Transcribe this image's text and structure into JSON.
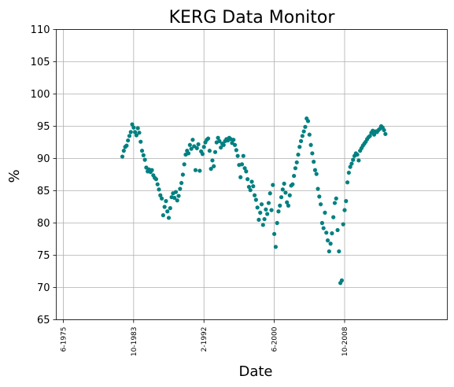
{
  "chart_data": {
    "type": "scatter",
    "title": "KERG Data Monitor",
    "xlabel": "Date",
    "ylabel": "%",
    "ylim": [
      65,
      110
    ],
    "yticks": [
      65,
      70,
      75,
      80,
      85,
      90,
      95,
      100,
      105,
      110
    ],
    "xlim": [
      "1974-08",
      "2020-12"
    ],
    "xticks": [
      {
        "label": "6-1975",
        "date": "1975-06"
      },
      {
        "label": "10-1983",
        "date": "1983-10"
      },
      {
        "label": "2-1992",
        "date": "1992-02"
      },
      {
        "label": "6-2000",
        "date": "2000-06"
      },
      {
        "label": "10-2008",
        "date": "2008-10"
      }
    ],
    "grid": true,
    "marker_color": "#008080",
    "series": [
      {
        "points": [
          [
            "1982-06",
            90.3
          ],
          [
            "1982-08",
            91.2
          ],
          [
            "1982-10",
            91.8
          ],
          [
            "1982-12",
            92.0
          ],
          [
            "1983-02",
            92.8
          ],
          [
            "1983-04",
            93.5
          ],
          [
            "1983-06",
            94.1
          ],
          [
            "1983-08",
            95.3
          ],
          [
            "1983-10",
            94.8
          ],
          [
            "1983-12",
            94.1
          ],
          [
            "1984-02",
            93.6
          ],
          [
            "1984-04",
            94.7
          ],
          [
            "1984-06",
            94.0
          ],
          [
            "1984-08",
            92.6
          ],
          [
            "1984-10",
            91.2
          ],
          [
            "1984-12",
            90.5
          ],
          [
            "1985-02",
            89.8
          ],
          [
            "1985-04",
            88.6
          ],
          [
            "1985-06",
            88.0
          ],
          [
            "1985-08",
            88.3
          ],
          [
            "1985-10",
            87.9
          ],
          [
            "1985-12",
            88.2
          ],
          [
            "1986-02",
            87.4
          ],
          [
            "1986-04",
            87.0
          ],
          [
            "1986-06",
            86.8
          ],
          [
            "1986-08",
            86.0
          ],
          [
            "1986-10",
            85.2
          ],
          [
            "1986-12",
            84.3
          ],
          [
            "1987-02",
            83.8
          ],
          [
            "1987-04",
            81.2
          ],
          [
            "1987-06",
            82.5
          ],
          [
            "1987-08",
            83.4
          ],
          [
            "1987-10",
            81.8
          ],
          [
            "1987-12",
            80.8
          ],
          [
            "1988-02",
            82.3
          ],
          [
            "1988-04",
            84.0
          ],
          [
            "1988-06",
            84.6
          ],
          [
            "1988-08",
            83.9
          ],
          [
            "1988-10",
            84.8
          ],
          [
            "1988-12",
            83.5
          ],
          [
            "1989-02",
            84.2
          ],
          [
            "1989-04",
            85.3
          ],
          [
            "1989-06",
            86.2
          ],
          [
            "1989-08",
            87.5
          ],
          [
            "1989-10",
            89.1
          ],
          [
            "1989-12",
            90.6
          ],
          [
            "1990-02",
            91.2
          ],
          [
            "1990-04",
            90.8
          ],
          [
            "1990-06",
            92.1
          ],
          [
            "1990-08",
            91.5
          ],
          [
            "1990-10",
            92.9
          ],
          [
            "1990-12",
            91.9
          ],
          [
            "1991-02",
            88.2
          ],
          [
            "1991-04",
            91.6
          ],
          [
            "1991-06",
            92.2
          ],
          [
            "1991-08",
            88.1
          ],
          [
            "1991-10",
            91.1
          ],
          [
            "1991-12",
            90.7
          ],
          [
            "1992-02",
            91.8
          ],
          [
            "1992-04",
            92.5
          ],
          [
            "1992-06",
            92.9
          ],
          [
            "1992-08",
            93.1
          ],
          [
            "1992-10",
            91.2
          ],
          [
            "1992-12",
            88.4
          ],
          [
            "1993-02",
            89.7
          ],
          [
            "1993-04",
            88.8
          ],
          [
            "1993-06",
            91.0
          ],
          [
            "1993-08",
            92.5
          ],
          [
            "1993-10",
            93.2
          ],
          [
            "1993-12",
            92.7
          ],
          [
            "1994-02",
            91.7
          ],
          [
            "1994-04",
            92.3
          ],
          [
            "1994-06",
            92.1
          ],
          [
            "1994-08",
            92.7
          ],
          [
            "1994-10",
            93.0
          ],
          [
            "1994-12",
            92.8
          ],
          [
            "1995-02",
            93.2
          ],
          [
            "1995-04",
            93.0
          ],
          [
            "1995-06",
            92.4
          ],
          [
            "1995-08",
            92.9
          ],
          [
            "1995-10",
            92.1
          ],
          [
            "1995-12",
            91.3
          ],
          [
            "1996-02",
            90.4
          ],
          [
            "1996-04",
            89.0
          ],
          [
            "1996-06",
            87.1
          ],
          [
            "1996-08",
            89.1
          ],
          [
            "1996-10",
            90.4
          ],
          [
            "1996-12",
            88.5
          ],
          [
            "1997-02",
            88.0
          ],
          [
            "1997-04",
            86.8
          ],
          [
            "1997-06",
            85.6
          ],
          [
            "1997-08",
            85.1
          ],
          [
            "1997-10",
            86.4
          ],
          [
            "1997-12",
            85.7
          ],
          [
            "1998-02",
            84.3
          ],
          [
            "1998-04",
            83.6
          ],
          [
            "1998-06",
            82.4
          ],
          [
            "1998-08",
            80.5
          ],
          [
            "1998-10",
            81.6
          ],
          [
            "1998-12",
            82.9
          ],
          [
            "1999-02",
            79.7
          ],
          [
            "1999-04",
            80.6
          ],
          [
            "1999-06",
            82.1
          ],
          [
            "1999-08",
            81.4
          ],
          [
            "1999-10",
            83.1
          ],
          [
            "1999-12",
            84.6
          ],
          [
            "2000-02",
            82.0
          ],
          [
            "2000-04",
            85.9
          ],
          [
            "2000-06",
            78.3
          ],
          [
            "2000-08",
            76.3
          ],
          [
            "2000-10",
            80.0
          ],
          [
            "2000-12",
            81.8
          ],
          [
            "2001-02",
            82.7
          ],
          [
            "2001-04",
            84.0
          ],
          [
            "2001-06",
            85.2
          ],
          [
            "2001-08",
            86.1
          ],
          [
            "2001-10",
            84.7
          ],
          [
            "2001-12",
            83.2
          ],
          [
            "2002-02",
            82.7
          ],
          [
            "2002-04",
            84.3
          ],
          [
            "2002-06",
            85.8
          ],
          [
            "2002-08",
            86.0
          ],
          [
            "2002-10",
            87.3
          ],
          [
            "2002-12",
            88.5
          ],
          [
            "2003-02",
            89.4
          ],
          [
            "2003-04",
            90.6
          ],
          [
            "2003-06",
            91.8
          ],
          [
            "2003-08",
            92.7
          ],
          [
            "2003-10",
            93.5
          ],
          [
            "2003-12",
            94.2
          ],
          [
            "2004-02",
            94.9
          ],
          [
            "2004-04",
            96.2
          ],
          [
            "2004-06",
            95.8
          ],
          [
            "2004-08",
            93.7
          ],
          [
            "2004-10",
            92.1
          ],
          [
            "2004-12",
            90.8
          ],
          [
            "2005-02",
            89.5
          ],
          [
            "2005-04",
            88.2
          ],
          [
            "2005-06",
            87.6
          ],
          [
            "2005-08",
            85.3
          ],
          [
            "2005-10",
            84.1
          ],
          [
            "2005-12",
            82.9
          ],
          [
            "2006-02",
            80.0
          ],
          [
            "2006-04",
            79.2
          ],
          [
            "2006-06",
            81.6
          ],
          [
            "2006-08",
            78.5
          ],
          [
            "2006-10",
            77.3
          ],
          [
            "2006-12",
            75.6
          ],
          [
            "2007-02",
            76.8
          ],
          [
            "2007-04",
            78.4
          ],
          [
            "2007-06",
            80.9
          ],
          [
            "2007-08",
            83.1
          ],
          [
            "2007-10",
            83.8
          ],
          [
            "2007-12",
            78.9
          ],
          [
            "2008-02",
            75.6
          ],
          [
            "2008-04",
            70.7
          ],
          [
            "2008-06",
            71.1
          ],
          [
            "2008-08",
            79.8
          ],
          [
            "2008-10",
            82.0
          ],
          [
            "2008-12",
            83.4
          ],
          [
            "2009-02",
            86.3
          ],
          [
            "2009-04",
            87.8
          ],
          [
            "2009-06",
            88.7
          ],
          [
            "2009-08",
            89.2
          ],
          [
            "2009-10",
            89.8
          ],
          [
            "2009-12",
            90.4
          ],
          [
            "2010-02",
            90.8
          ],
          [
            "2010-04",
            90.6
          ],
          [
            "2010-06",
            89.7
          ],
          [
            "2010-08",
            91.2
          ],
          [
            "2010-10",
            91.6
          ],
          [
            "2010-12",
            92.0
          ],
          [
            "2011-02",
            92.3
          ],
          [
            "2011-04",
            92.6
          ],
          [
            "2011-06",
            93.0
          ],
          [
            "2011-08",
            93.3
          ],
          [
            "2011-10",
            93.5
          ],
          [
            "2011-12",
            94.0
          ],
          [
            "2012-02",
            94.3
          ],
          [
            "2012-04",
            93.7
          ],
          [
            "2012-06",
            94.2
          ],
          [
            "2012-08",
            94.1
          ],
          [
            "2012-10",
            94.4
          ],
          [
            "2012-12",
            94.6
          ],
          [
            "2013-02",
            95.0
          ],
          [
            "2013-04",
            94.8
          ],
          [
            "2013-06",
            94.4
          ],
          [
            "2013-08",
            93.8
          ]
        ]
      }
    ]
  }
}
